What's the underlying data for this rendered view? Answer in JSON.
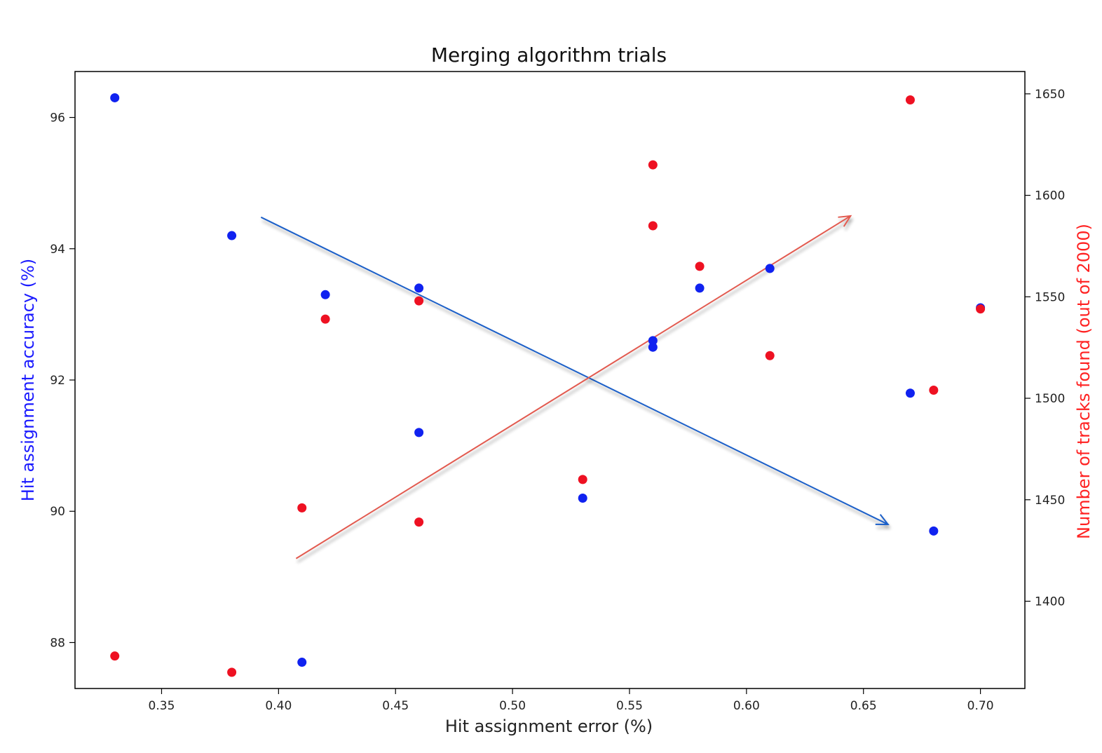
{
  "chart_data": {
    "type": "scatter",
    "title": "Merging algorithm trials",
    "xlabel": "Hit assignment error (%)",
    "ylabel_left": "Hit assignment accuracy (%)",
    "ylabel_right": "Number of tracks found (out of 2000)",
    "xlim": [
      0.313,
      0.719
    ],
    "ylim_left": [
      87.3,
      96.7
    ],
    "ylim_right": [
      1357,
      1661
    ],
    "x_ticks": [
      0.35,
      0.4,
      0.45,
      0.5,
      0.55,
      0.6,
      0.65,
      0.7
    ],
    "x_tick_labels": [
      "0.35",
      "0.40",
      "0.45",
      "0.50",
      "0.55",
      "0.60",
      "0.65",
      "0.70"
    ],
    "y_left_ticks": [
      88,
      90,
      92,
      94,
      96
    ],
    "y_left_tick_labels": [
      "88",
      "90",
      "92",
      "94",
      "96"
    ],
    "y_right_ticks": [
      1400,
      1450,
      1500,
      1550,
      1600,
      1650
    ],
    "y_right_tick_labels": [
      "1400",
      "1450",
      "1500",
      "1550",
      "1600",
      "1650"
    ],
    "grid": false,
    "series": [
      {
        "axis": "left",
        "color": "#1022f0",
        "points": [
          {
            "x": 0.33,
            "y": 96.3
          },
          {
            "x": 0.38,
            "y": 94.2
          },
          {
            "x": 0.41,
            "y": 87.7
          },
          {
            "x": 0.42,
            "y": 93.3
          },
          {
            "x": 0.46,
            "y": 93.4
          },
          {
            "x": 0.46,
            "y": 91.2
          },
          {
            "x": 0.53,
            "y": 90.2
          },
          {
            "x": 0.56,
            "y": 92.6
          },
          {
            "x": 0.56,
            "y": 92.5
          },
          {
            "x": 0.58,
            "y": 93.4
          },
          {
            "x": 0.61,
            "y": 93.7
          },
          {
            "x": 0.67,
            "y": 91.8
          },
          {
            "x": 0.68,
            "y": 89.7
          },
          {
            "x": 0.7,
            "y": 93.1
          }
        ]
      },
      {
        "axis": "right",
        "color": "#ee1122",
        "points": [
          {
            "x": 0.33,
            "y": 1373
          },
          {
            "x": 0.38,
            "y": 1365
          },
          {
            "x": 0.41,
            "y": 1446
          },
          {
            "x": 0.42,
            "y": 1539
          },
          {
            "x": 0.46,
            "y": 1548
          },
          {
            "x": 0.46,
            "y": 1439
          },
          {
            "x": 0.53,
            "y": 1460
          },
          {
            "x": 0.56,
            "y": 1615
          },
          {
            "x": 0.56,
            "y": 1585
          },
          {
            "x": 0.58,
            "y": 1565
          },
          {
            "x": 0.61,
            "y": 1521
          },
          {
            "x": 0.67,
            "y": 1647
          },
          {
            "x": 0.68,
            "y": 1504
          },
          {
            "x": 0.7,
            "y": 1544
          }
        ]
      }
    ],
    "annotations": [
      {
        "type": "arrow",
        "color": "#1a5fc8",
        "axis": "left",
        "from": {
          "x": 0.3925,
          "y": 94.48
        },
        "to": {
          "x": 0.6605,
          "y": 89.8
        }
      },
      {
        "type": "arrow",
        "color": "#e25a50",
        "axis": "left",
        "from": {
          "x": 0.4075,
          "y": 89.28
        },
        "to": {
          "x": 0.6445,
          "y": 94.5
        }
      }
    ],
    "colors": {
      "left_axis_label": "#1a1aff",
      "right_axis_label": "#ff2222"
    }
  }
}
